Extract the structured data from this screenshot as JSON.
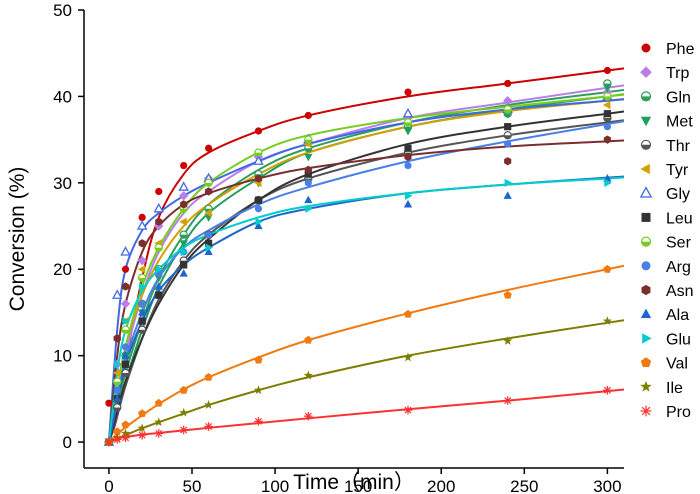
{
  "chart_data": {
    "type": "scatter",
    "title": "",
    "xlabel": "Time（min）",
    "ylabel": "Conversion (%)",
    "xlim": [
      -15,
      310
    ],
    "ylim": [
      -3,
      50
    ],
    "xticks": [
      0,
      50,
      100,
      150,
      200,
      250,
      300
    ],
    "yticks": [
      0,
      10,
      20,
      30,
      40,
      50
    ],
    "legend_position": "right",
    "fit_curves": true,
    "x": [
      0,
      5,
      10,
      20,
      30,
      45,
      60,
      90,
      120,
      180,
      240,
      300
    ],
    "series": [
      {
        "name": "Phe",
        "color": "#cc0000",
        "marker": "circle",
        "values": [
          4.5,
          12,
          20,
          26,
          29,
          32,
          34,
          36,
          37.8,
          40.5,
          41.5,
          43
        ],
        "fit": [
          0,
          3,
          9,
          19,
          26,
          31,
          33.5,
          36,
          37.8,
          40,
          41.5,
          43
        ]
      },
      {
        "name": "Trp",
        "color": "#b97ee8",
        "marker": "diamond",
        "values": [
          0,
          9,
          16,
          21,
          25,
          28.5,
          30.5,
          33,
          34.5,
          37.5,
          39.5,
          40.5
        ],
        "fit": [
          0,
          5,
          10,
          17,
          22,
          26.5,
          29,
          32.5,
          34.5,
          37.5,
          39.3,
          41
        ]
      },
      {
        "name": "Gln",
        "color": "#2e9e5a",
        "marker": "circle-half",
        "values": [
          0,
          5,
          10,
          16,
          20,
          24,
          27,
          31,
          34,
          36.5,
          38,
          41.5
        ],
        "fit": [
          0,
          4,
          8,
          14,
          19,
          24,
          27.5,
          31.5,
          34,
          37,
          39,
          40.5
        ]
      },
      {
        "name": "Met",
        "color": "#1f9e5e",
        "marker": "triangle-down",
        "values": [
          0,
          5,
          10,
          15,
          19,
          23,
          26,
          30,
          33,
          36,
          38,
          41
        ],
        "fit": [
          0,
          3.5,
          7,
          13,
          18,
          23,
          26.5,
          30.5,
          33.5,
          36.5,
          38.5,
          40
        ]
      },
      {
        "name": "Thr",
        "color": "#555555",
        "marker": "circle-half",
        "values": [
          0,
          4,
          8,
          13,
          17,
          21,
          24,
          28,
          30.5,
          33.5,
          35.5,
          37.5
        ],
        "fit": [
          0,
          3,
          6.5,
          12,
          16.5,
          21,
          24,
          28,
          30.5,
          33.5,
          35.5,
          37
        ]
      },
      {
        "name": "Tyr",
        "color": "#d4a000",
        "marker": "triangle-left",
        "values": [
          0,
          8,
          14,
          20,
          23,
          25.5,
          26.5,
          30,
          34.5,
          37,
          38.5,
          39
        ],
        "fit": [
          0,
          6,
          11,
          17,
          21,
          25,
          27.5,
          31,
          33.5,
          36.5,
          38.3,
          39.5
        ]
      },
      {
        "name": "Gly",
        "color": "#4169e1",
        "marker": "triangle-up-open",
        "values": [
          0,
          17,
          22,
          25,
          27,
          29.5,
          30.5,
          32.5,
          35,
          38,
          38.5,
          40
        ],
        "fit": [
          0,
          13,
          20,
          24.5,
          26.5,
          28.5,
          30,
          32.5,
          34.5,
          37,
          38.5,
          39.5
        ]
      },
      {
        "name": "Leu",
        "color": "#333333",
        "marker": "square",
        "values": [
          0,
          5,
          9,
          14,
          17,
          20.5,
          23,
          28,
          31,
          34,
          36.5,
          38
        ],
        "fit": [
          0,
          3.5,
          7,
          12,
          16,
          20.5,
          23.5,
          28,
          31,
          34.5,
          36.5,
          38
        ]
      },
      {
        "name": "Ser",
        "color": "#77cc22",
        "marker": "circle-half",
        "values": [
          0,
          7,
          13,
          19,
          22.5,
          27,
          30,
          33.5,
          35,
          37,
          38.5,
          40
        ],
        "fit": [
          0,
          6,
          11,
          18,
          22.5,
          27,
          30,
          33.5,
          35.5,
          37.5,
          38.8,
          40
        ]
      },
      {
        "name": "Arg",
        "color": "#4a7fe6",
        "marker": "circle",
        "values": [
          0,
          6,
          11,
          16,
          19.5,
          22,
          24,
          27,
          30,
          32,
          34.5,
          36.5
        ],
        "fit": [
          0,
          5,
          9.5,
          15,
          19,
          22.5,
          24.5,
          27.5,
          29.5,
          32.5,
          34.8,
          36.8
        ]
      },
      {
        "name": "Asn",
        "color": "#7a2e2e",
        "marker": "hexagon",
        "values": [
          0,
          12,
          18,
          23,
          25.5,
          27.5,
          29,
          30.5,
          31.5,
          33,
          32.5,
          35
        ],
        "fit": [
          0,
          10,
          16,
          22,
          25,
          27.5,
          28.8,
          30.5,
          31.7,
          33.2,
          34.2,
          34.8
        ]
      },
      {
        "name": "Ala",
        "color": "#1e66cc",
        "marker": "triangle-up",
        "values": [
          0,
          5,
          10,
          15,
          18,
          19.5,
          22,
          25,
          28,
          27.5,
          28.5,
          30.5
        ],
        "fit": [
          0,
          4.5,
          9,
          14,
          17.5,
          20.5,
          22.5,
          25.5,
          27,
          28.8,
          29.8,
          30.6
        ]
      },
      {
        "name": "Glu",
        "color": "#00cccc",
        "marker": "triangle-right",
        "values": [
          0,
          9,
          14,
          18,
          20,
          22,
          22.5,
          25.5,
          27,
          28.5,
          30,
          30
        ],
        "fit": [
          0,
          8,
          13,
          17.5,
          20,
          22.5,
          24,
          26,
          27.3,
          28.8,
          29.8,
          30.5
        ]
      },
      {
        "name": "Val",
        "color": "#f07a10",
        "marker": "pentagon",
        "values": [
          0,
          1.2,
          2,
          3.3,
          4.5,
          6,
          7.5,
          9.5,
          11.8,
          14.8,
          17,
          20
        ],
        "fit": [
          0,
          0.9,
          1.7,
          3.1,
          4.4,
          6.1,
          7.5,
          9.8,
          11.8,
          14.9,
          17.6,
          20
        ]
      },
      {
        "name": "Ile",
        "color": "#7d7d00",
        "marker": "star",
        "values": [
          0,
          0.5,
          1,
          1.6,
          2.3,
          3.4,
          4.3,
          6,
          7.7,
          9.8,
          11.7,
          14
        ],
        "fit": [
          0,
          0.4,
          0.8,
          1.6,
          2.3,
          3.3,
          4.3,
          6,
          7.5,
          10,
          12,
          13.8
        ]
      },
      {
        "name": "Pro",
        "color": "#ff3030",
        "marker": "asterisk",
        "values": [
          0,
          0.3,
          0.5,
          0.8,
          1,
          1.4,
          1.8,
          2.4,
          3,
          3.7,
          4.8,
          6
        ],
        "fit": [
          0,
          0.4,
          0.6,
          0.85,
          1.05,
          1.35,
          1.65,
          2.2,
          2.75,
          3.8,
          4.8,
          5.9
        ]
      }
    ]
  }
}
